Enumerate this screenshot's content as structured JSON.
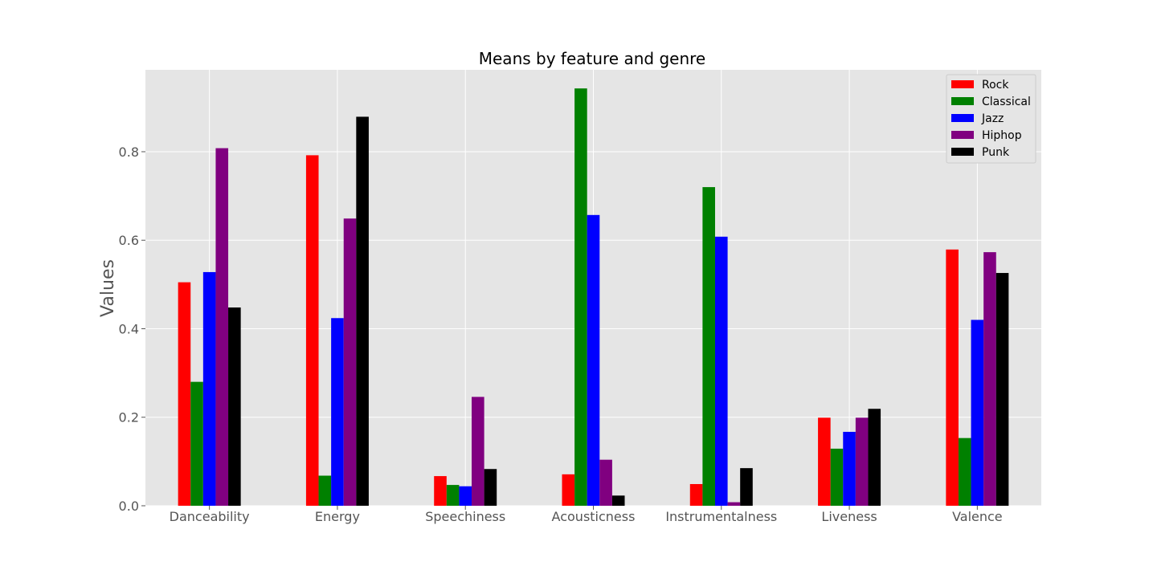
{
  "chart_data": {
    "type": "bar",
    "title": "Means by feature and genre",
    "xlabel": "",
    "ylabel": "Values",
    "ylim": [
      0,
      0.985
    ],
    "yticks": [
      0.0,
      0.2,
      0.4,
      0.6,
      0.8
    ],
    "ytick_labels": [
      "0.0",
      "0.2",
      "0.4",
      "0.6",
      "0.8"
    ],
    "grid": true,
    "legend_position": "top-right",
    "categories": [
      "Danceability",
      "Energy",
      "Speechiness",
      "Acousticness",
      "Instrumentalness",
      "Liveness",
      "Valence"
    ],
    "series": [
      {
        "name": "Rock",
        "color": "#ff0000",
        "values": [
          0.505,
          0.792,
          0.067,
          0.071,
          0.049,
          0.199,
          0.579
        ]
      },
      {
        "name": "Classical",
        "color": "#008000",
        "values": [
          0.28,
          0.068,
          0.047,
          0.943,
          0.72,
          0.129,
          0.153
        ]
      },
      {
        "name": "Jazz",
        "color": "#0000ff",
        "values": [
          0.528,
          0.424,
          0.044,
          0.657,
          0.608,
          0.167,
          0.42
        ]
      },
      {
        "name": "Hiphop",
        "color": "#800080",
        "values": [
          0.808,
          0.649,
          0.246,
          0.104,
          0.008,
          0.199,
          0.573
        ]
      },
      {
        "name": "Punk",
        "color": "#000000",
        "values": [
          0.448,
          0.879,
          0.083,
          0.023,
          0.085,
          0.219,
          0.526
        ]
      }
    ]
  }
}
